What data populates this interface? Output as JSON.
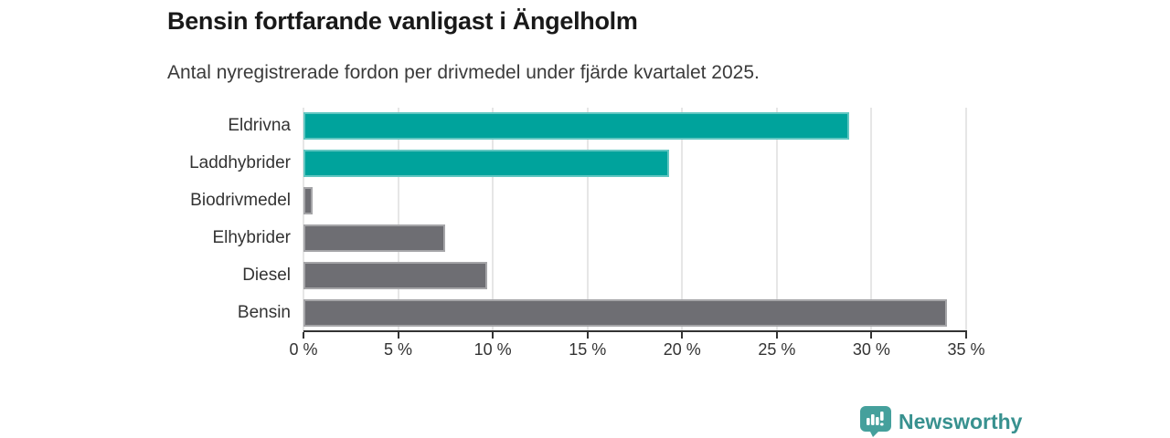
{
  "header": {
    "title": "Bensin fortfarande vanligast i Ängelholm",
    "subtitle": "Antal nyregistrerade fordon per drivmedel under fjärde kvartalet 2025."
  },
  "chart_data": {
    "type": "bar",
    "orientation": "horizontal",
    "title": "Bensin fortfarande vanligast i Ängelholm",
    "subtitle": "Antal nyregistrerade fordon per drivmedel under fjärde kvartalet 2025.",
    "categories": [
      "Eldrivna",
      "Laddhybrider",
      "Biodrivmedel",
      "Elhybrider",
      "Diesel",
      "Bensin"
    ],
    "values": [
      28.8,
      19.3,
      0.5,
      7.5,
      9.7,
      34.0
    ],
    "unit": "%",
    "bar_colors": [
      "#00a39c",
      "#00a39c",
      "#6e6e73",
      "#6e6e73",
      "#6e6e73",
      "#6e6e73"
    ],
    "xlabel": "",
    "ylabel": "",
    "xlim": [
      0,
      35
    ],
    "xticks": [
      0,
      5,
      10,
      15,
      20,
      25,
      30,
      35
    ],
    "xtick_labels": [
      "0 %",
      "5 %",
      "10 %",
      "15 %",
      "20 %",
      "25 %",
      "30 %",
      "35 %"
    ],
    "grid": true,
    "legend": false
  },
  "footer": {
    "brand": "Newsworthy",
    "brand_color": "#38918f",
    "icon": "bar-chart-speech-bubble-icon",
    "icon_color": "#45a09c"
  },
  "colors": {
    "accent_teal": "#00a39c",
    "neutral_gray": "#6e6e73",
    "grid": "#e6e6e6",
    "axis": "#333333",
    "title_text": "#191919",
    "body_text": "#3a3a3a"
  }
}
